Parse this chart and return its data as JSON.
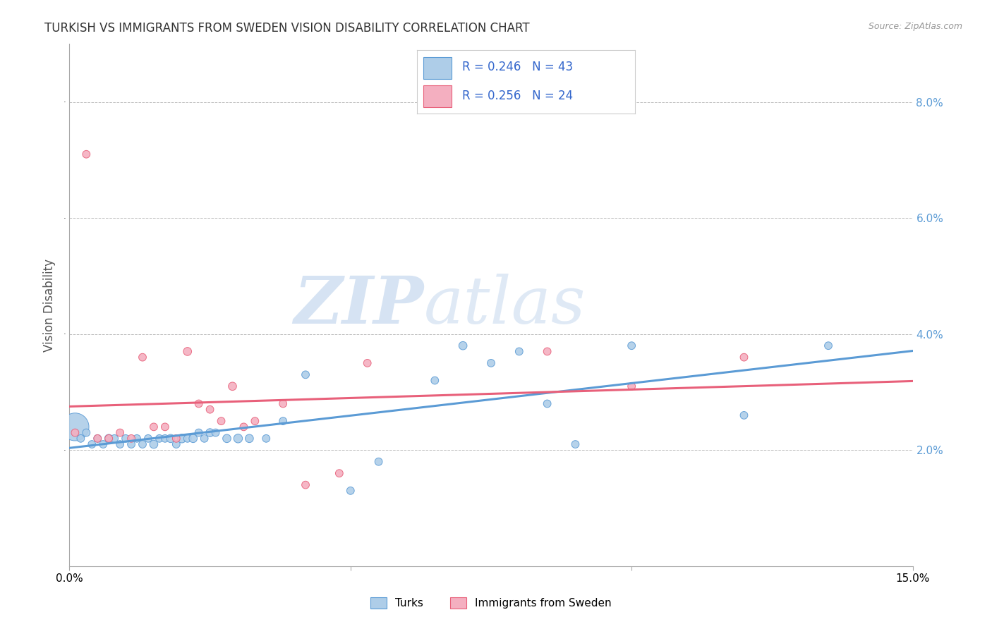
{
  "title": "TURKISH VS IMMIGRANTS FROM SWEDEN VISION DISABILITY CORRELATION CHART",
  "source": "Source: ZipAtlas.com",
  "xlabel_turks": "Turks",
  "xlabel_immigrants": "Immigrants from Sweden",
  "ylabel": "Vision Disability",
  "xlim": [
    0.0,
    0.15
  ],
  "ylim": [
    0.0,
    0.09
  ],
  "R_turks": 0.246,
  "N_turks": 43,
  "R_immigrants": 0.256,
  "N_immigrants": 24,
  "turks_color": "#aecde8",
  "immigrants_color": "#f4afc0",
  "turks_line_color": "#5b9bd5",
  "immigrants_line_color": "#e8607a",
  "watermark_zip": "ZIP",
  "watermark_atlas": "atlas",
  "turks_x": [
    0.001,
    0.002,
    0.003,
    0.004,
    0.005,
    0.006,
    0.007,
    0.008,
    0.009,
    0.01,
    0.011,
    0.012,
    0.013,
    0.014,
    0.015,
    0.016,
    0.017,
    0.018,
    0.019,
    0.02,
    0.021,
    0.022,
    0.023,
    0.024,
    0.025,
    0.026,
    0.028,
    0.03,
    0.032,
    0.035,
    0.038,
    0.042,
    0.05,
    0.055,
    0.065,
    0.07,
    0.075,
    0.08,
    0.085,
    0.09,
    0.1,
    0.12,
    0.135
  ],
  "turks_y": [
    0.024,
    0.022,
    0.023,
    0.021,
    0.022,
    0.021,
    0.022,
    0.022,
    0.021,
    0.022,
    0.021,
    0.022,
    0.021,
    0.022,
    0.021,
    0.022,
    0.022,
    0.022,
    0.021,
    0.022,
    0.022,
    0.022,
    0.023,
    0.022,
    0.023,
    0.023,
    0.022,
    0.022,
    0.022,
    0.022,
    0.025,
    0.033,
    0.013,
    0.018,
    0.032,
    0.038,
    0.035,
    0.037,
    0.028,
    0.021,
    0.038,
    0.026,
    0.038
  ],
  "turks_size": [
    800,
    60,
    60,
    60,
    60,
    60,
    70,
    60,
    60,
    60,
    60,
    60,
    60,
    60,
    70,
    60,
    60,
    70,
    60,
    80,
    60,
    70,
    60,
    60,
    70,
    60,
    70,
    80,
    70,
    60,
    60,
    60,
    60,
    60,
    60,
    70,
    60,
    60,
    60,
    60,
    60,
    60,
    60
  ],
  "immigrants_x": [
    0.001,
    0.003,
    0.005,
    0.007,
    0.009,
    0.011,
    0.013,
    0.015,
    0.017,
    0.019,
    0.021,
    0.023,
    0.025,
    0.027,
    0.029,
    0.031,
    0.033,
    0.038,
    0.042,
    0.048,
    0.053,
    0.085,
    0.1,
    0.12
  ],
  "immigrants_y": [
    0.023,
    0.071,
    0.022,
    0.022,
    0.023,
    0.022,
    0.036,
    0.024,
    0.024,
    0.022,
    0.037,
    0.028,
    0.027,
    0.025,
    0.031,
    0.024,
    0.025,
    0.028,
    0.014,
    0.016,
    0.035,
    0.037,
    0.031,
    0.036
  ],
  "immigrants_size": [
    60,
    60,
    60,
    60,
    60,
    60,
    60,
    60,
    60,
    60,
    70,
    60,
    60,
    60,
    70,
    60,
    60,
    60,
    60,
    60,
    60,
    60,
    60,
    60
  ]
}
